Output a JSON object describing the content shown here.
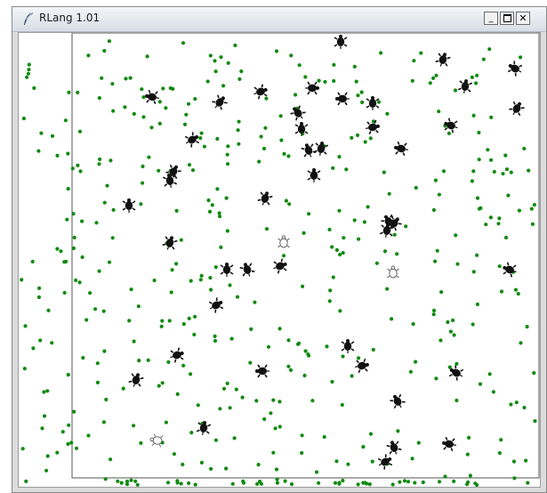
{
  "window": {
    "title": "RLang 1.01",
    "controls": {
      "minimize_icon": "minimize-icon",
      "maximize_icon": "maximize-icon",
      "close_icon": "close-icon"
    }
  },
  "colors": {
    "titlebar": "#dde3ea",
    "food": "#108a10",
    "turtle_dark": "#111111",
    "turtle_outline": "#555555",
    "border": "#555555",
    "background": "#ffffff"
  },
  "icons": {
    "app": "feather-icon",
    "agent_dark": "turtle-icon",
    "agent_hollow": "turtle-outline-icon"
  }
}
